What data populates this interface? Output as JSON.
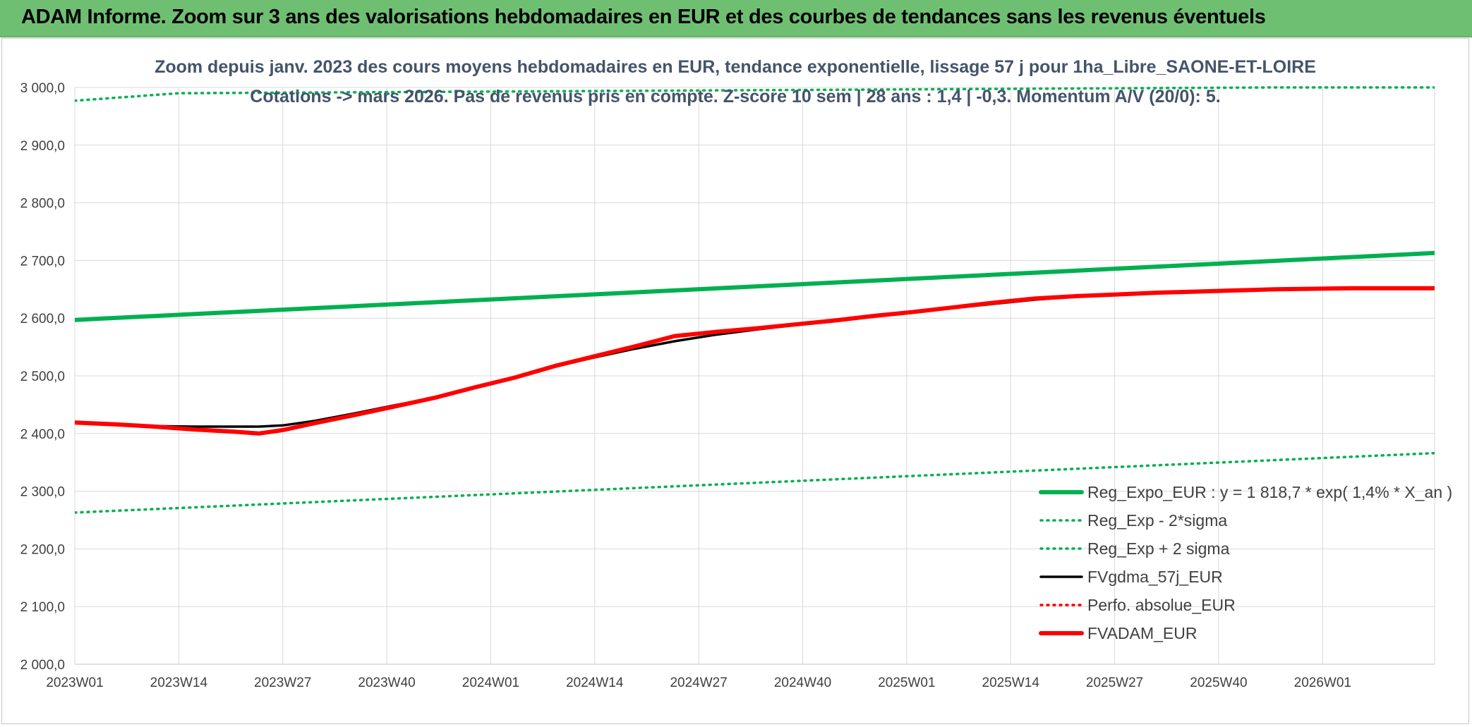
{
  "header": {
    "title": "ADAM Informe. Zoom sur 3 ans des valorisations hebdomadaires en EUR et des courbes de tendances sans les revenus éventuels"
  },
  "colors": {
    "header_bg": "#6fbf73",
    "reg_expo": "#00b050",
    "sigma": "#00b050",
    "fvgdma": "#000000",
    "perfo": "#ff0000",
    "fvadam": "#ff0000",
    "grid": "#d9d9d9"
  },
  "chart_data": {
    "type": "line",
    "title_line1": "Zoom depuis janv. 2023 des cours moyens hebdomadaires en EUR, tendance exponentielle, lissage 57 j pour 1ha_Libre_SAONE-ET-LOIRE",
    "title_line2": "Cotations -> mars 2026. Pas de revenus pris en compte. Z-score 10 sem | 28 ans : 1,4 | -0,3. Momentum A/V (20/0): 5.",
    "xlabel": "",
    "ylabel": "",
    "ylim": [
      2000,
      3000
    ],
    "yticks": [
      "2 000,0",
      "2 100,0",
      "2 200,0",
      "2 300,0",
      "2 400,0",
      "2 500,0",
      "2 600,0",
      "2 700,0",
      "2 800,0",
      "2 900,0",
      "3 000,0"
    ],
    "xticks": [
      "2023W01",
      "2023W14",
      "2023W27",
      "2023W40",
      "2024W01",
      "2024W14",
      "2024W27",
      "2024W40",
      "2025W01",
      "2025W14",
      "2025W27",
      "2025W40",
      "2026W01"
    ],
    "x_range_weeks": [
      0,
      170
    ],
    "grid": true,
    "legend_position": "bottom-right",
    "series": [
      {
        "name": "Reg_Expo_EUR : y = 1 818,7 * exp( 1,4% *  X_an )",
        "style": "solid-thick",
        "points": [
          [
            0,
            2597
          ],
          [
            170,
            2713
          ]
        ]
      },
      {
        "name": "Reg_Exp - 2*sigma",
        "style": "dotted",
        "points": [
          [
            0,
            2263
          ],
          [
            170,
            2366
          ]
        ]
      },
      {
        "name": "Reg_Exp + 2 sigma",
        "style": "dotted",
        "points": [
          [
            0,
            2977
          ],
          [
            13,
            2990
          ],
          [
            150,
            3000
          ],
          [
            170,
            3000
          ]
        ]
      },
      {
        "name": "FVgdma_57j_EUR",
        "style": "solid",
        "points": [
          [
            0,
            2419
          ],
          [
            5,
            2416
          ],
          [
            10,
            2413
          ],
          [
            15,
            2412
          ],
          [
            20,
            2412
          ],
          [
            23,
            2412
          ],
          [
            26,
            2414
          ],
          [
            30,
            2422
          ],
          [
            35,
            2435
          ],
          [
            40,
            2449
          ],
          [
            45,
            2462
          ],
          [
            50,
            2480
          ],
          [
            55,
            2497
          ],
          [
            60,
            2516
          ],
          [
            65,
            2532
          ],
          [
            70,
            2547
          ],
          [
            75,
            2560
          ],
          [
            80,
            2571
          ],
          [
            85,
            2580
          ],
          [
            90,
            2588
          ],
          [
            95,
            2595
          ],
          [
            100,
            2603
          ],
          [
            105,
            2610
          ],
          [
            110,
            2618
          ],
          [
            115,
            2625
          ],
          [
            120,
            2632
          ],
          [
            125,
            2637
          ],
          [
            130,
            2640
          ],
          [
            135,
            2643
          ],
          [
            140,
            2646
          ],
          [
            145,
            2648
          ],
          [
            150,
            2650
          ],
          [
            155,
            2651
          ],
          [
            160,
            2652
          ],
          [
            165,
            2652
          ],
          [
            170,
            2652
          ]
        ]
      },
      {
        "name": "Perfo. absolue_EUR",
        "style": "dotted",
        "points": []
      },
      {
        "name": "FVADAM_EUR",
        "style": "solid-thick",
        "points": [
          [
            0,
            2419
          ],
          [
            5,
            2416
          ],
          [
            10,
            2412
          ],
          [
            15,
            2407
          ],
          [
            20,
            2403
          ],
          [
            23,
            2400
          ],
          [
            26,
            2406
          ],
          [
            30,
            2418
          ],
          [
            35,
            2432
          ],
          [
            40,
            2447
          ],
          [
            45,
            2462
          ],
          [
            50,
            2480
          ],
          [
            55,
            2497
          ],
          [
            60,
            2517
          ],
          [
            65,
            2534
          ],
          [
            70,
            2551
          ],
          [
            75,
            2569
          ],
          [
            80,
            2576
          ],
          [
            85,
            2582
          ],
          [
            90,
            2589
          ],
          [
            95,
            2596
          ],
          [
            100,
            2604
          ],
          [
            105,
            2611
          ],
          [
            110,
            2619
          ],
          [
            115,
            2627
          ],
          [
            120,
            2634
          ],
          [
            125,
            2638
          ],
          [
            130,
            2641
          ],
          [
            135,
            2644
          ],
          [
            140,
            2646
          ],
          [
            145,
            2648
          ],
          [
            150,
            2650
          ],
          [
            155,
            2651
          ],
          [
            160,
            2652
          ],
          [
            165,
            2652
          ],
          [
            170,
            2652
          ]
        ]
      }
    ]
  }
}
